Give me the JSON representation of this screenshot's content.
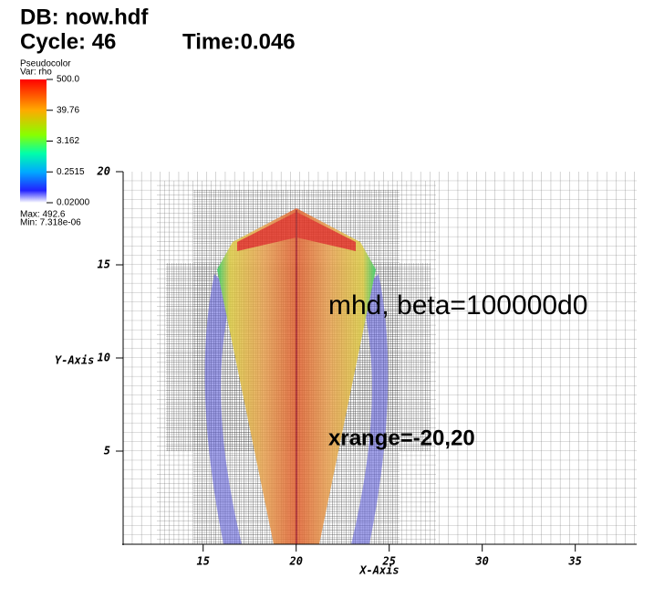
{
  "chart_data": {
    "type": "pseudocolor",
    "database": "DB: now.hdf",
    "cycle": "Cycle: 46",
    "time": "Time:0.046",
    "colorbar": {
      "title": "Pseudocolor",
      "variable": "Var: rho",
      "log": true,
      "range": [
        0.02,
        500
      ],
      "ticks": [
        {
          "value": 500,
          "label": "500.0"
        },
        39.76,
        3.162,
        0.2515,
        {
          "value": 0.02,
          "label": "0.02000"
        }
      ],
      "max": "Max:  492.6",
      "min": "Min:  7.318e-06"
    },
    "x_label": "X-Axis",
    "y_label": "Y-Axis",
    "xlim": [
      10.7,
      38.3
    ],
    "ylim": [
      0,
      20
    ],
    "xticks": [
      15,
      20,
      25,
      30,
      35
    ],
    "yticks": [
      5,
      10,
      15,
      20
    ],
    "annotations": [
      "mhd, beta=100000d0",
      "xrange=-20,20"
    ]
  }
}
